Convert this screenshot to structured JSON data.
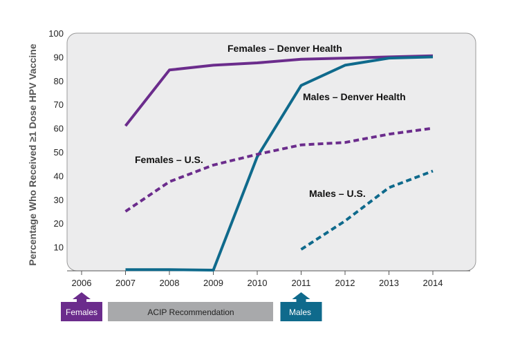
{
  "chart_data": {
    "type": "line",
    "ylabel": "Percentage Who Received ≥1 Dose HPV Vaccine",
    "xlabel": "",
    "ylim": [
      0,
      100
    ],
    "yticks": [
      10,
      20,
      30,
      40,
      50,
      60,
      70,
      80,
      90,
      100
    ],
    "xlim": [
      2006,
      2014
    ],
    "xticks": [
      2006,
      2007,
      2008,
      2009,
      2010,
      2011,
      2012,
      2013,
      2014
    ],
    "grid": false,
    "series": [
      {
        "name": "Females – Denver Health",
        "color": "#6b2c8c",
        "style": "solid",
        "x": [
          2007,
          2008,
          2009,
          2010,
          2011,
          2012,
          2013,
          2014
        ],
        "y": [
          61,
          84.5,
          86.5,
          87.5,
          89,
          89.5,
          90,
          90.5
        ]
      },
      {
        "name": "Males – Denver Health",
        "color": "#0f6a8c",
        "style": "solid",
        "x": [
          2007,
          2008,
          2009,
          2010,
          2011,
          2012,
          2013,
          2014
        ],
        "y": [
          0.5,
          0.5,
          0.3,
          48,
          78,
          86.5,
          89.5,
          90
        ]
      },
      {
        "name": "Females – U.S.",
        "color": "#6b2c8c",
        "style": "dashed",
        "x": [
          2007,
          2008,
          2009,
          2010,
          2011,
          2012,
          2013,
          2014
        ],
        "y": [
          25,
          37.5,
          44.5,
          49,
          53,
          54,
          57.5,
          60
        ]
      },
      {
        "name": "Males – U.S.",
        "color": "#0f6a8c",
        "style": "dashed",
        "x": [
          2011,
          2012,
          2013,
          2014
        ],
        "y": [
          9,
          21,
          35,
          42
        ]
      }
    ],
    "timeline": {
      "females_label": "Females",
      "acip_label": "ACIP Recommendation",
      "males_label": "Males",
      "females_year": 2006,
      "males_year": 2011,
      "females_color": "#6b2c8c",
      "males_color": "#0f6a8c",
      "acip_color": "#a8a9ab"
    }
  }
}
